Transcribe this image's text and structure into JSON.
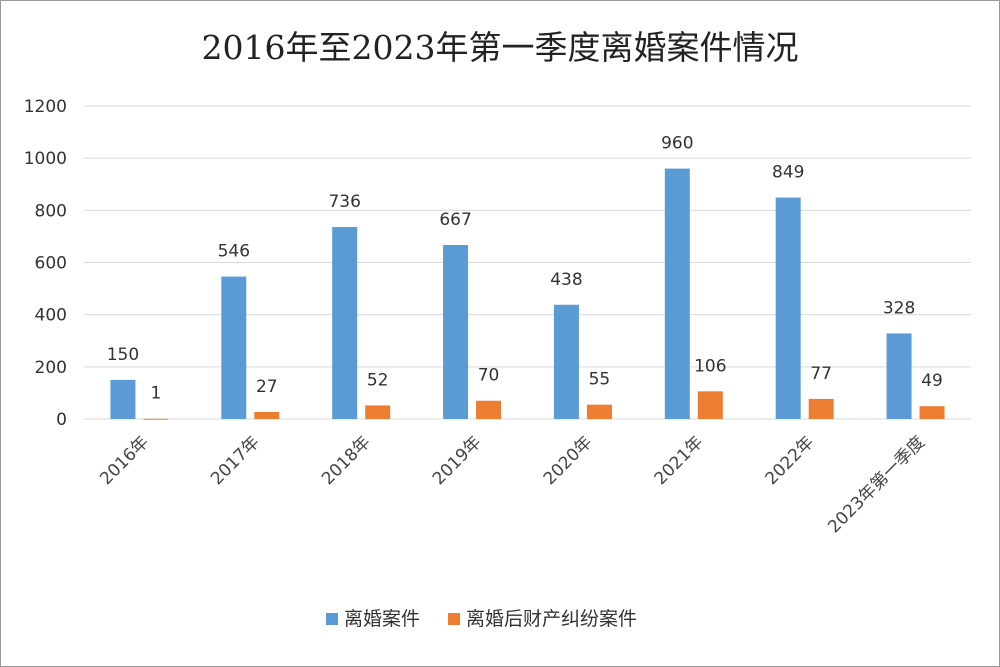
{
  "chart_data": {
    "type": "bar",
    "title": "2016年至2023年第一季度离婚案件情况",
    "categories": [
      "2016年",
      "2017年",
      "2018年",
      "2019年",
      "2020年",
      "2021年",
      "2022年",
      "2023年第一季度"
    ],
    "series": [
      {
        "name": "离婚案件",
        "values": [
          150,
          546,
          736,
          667,
          438,
          960,
          849,
          328
        ],
        "color": "#5B9BD5"
      },
      {
        "name": "离婚后财产纠纷案件",
        "values": [
          1,
          27,
          52,
          70,
          55,
          106,
          77,
          49
        ],
        "color": "#ED7D31"
      }
    ],
    "ylim": [
      0,
      1200
    ],
    "yticks": [
      "0",
      "200",
      "400",
      "600",
      "800",
      "1000",
      "1200"
    ],
    "grid": true,
    "legend_position": "bottom",
    "gridline_color": "#d9d9d9"
  }
}
